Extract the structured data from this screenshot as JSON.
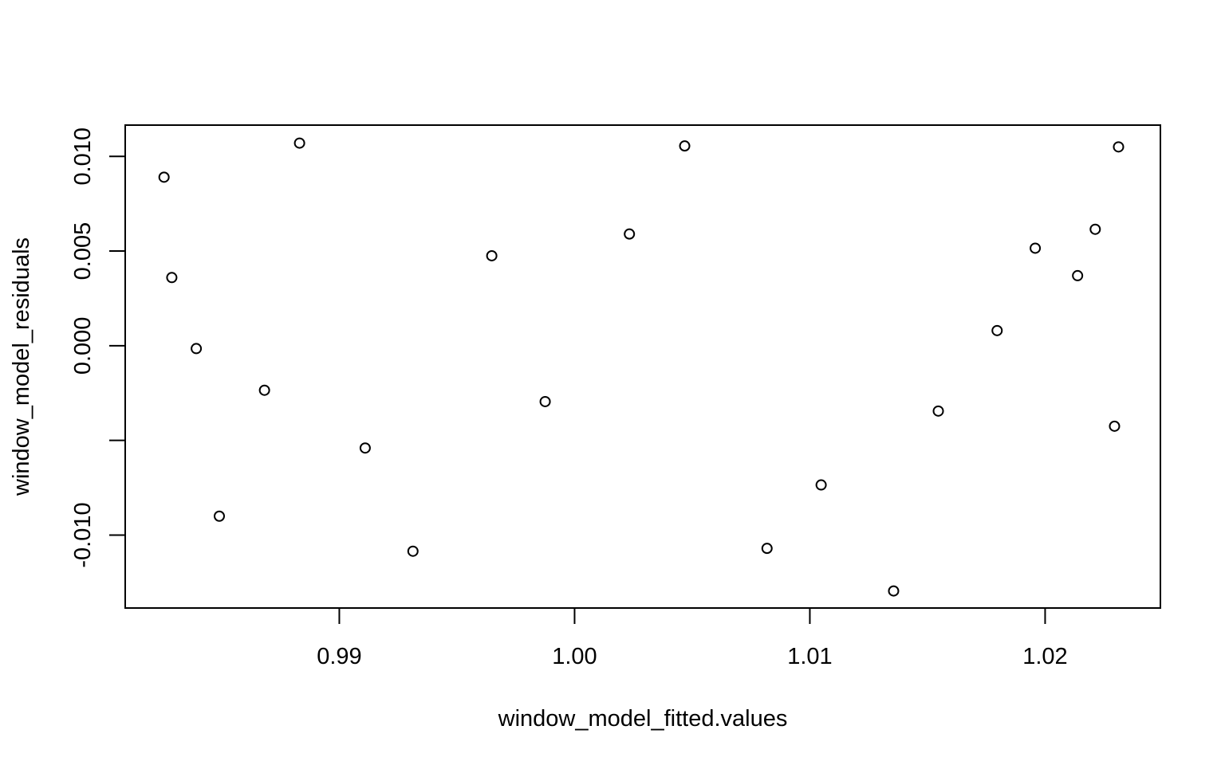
{
  "chart_data": {
    "type": "scatter",
    "title": "",
    "xlabel": "window_model_fitted.values",
    "ylabel": "window_model_residuals",
    "xlim": [
      0.9809,
      1.0249
    ],
    "ylim": [
      -0.01385,
      0.01165
    ],
    "x_ticks": [
      {
        "value": 0.99,
        "label": "0.99"
      },
      {
        "value": 1.0,
        "label": "1.00"
      },
      {
        "value": 1.01,
        "label": "1.01"
      },
      {
        "value": 1.02,
        "label": "1.02"
      }
    ],
    "y_ticks": [
      {
        "value": -0.01,
        "label": "-0.010"
      },
      {
        "value": -0.005,
        "label": ""
      },
      {
        "value": 0.0,
        "label": "0.000"
      },
      {
        "value": 0.005,
        "label": "0.005"
      },
      {
        "value": 0.01,
        "label": "0.010"
      }
    ],
    "grid": false,
    "legend": "none",
    "marker": "open-circle",
    "points": [
      {
        "x": 0.98255,
        "y": 0.0089
      },
      {
        "x": 0.98288,
        "y": 0.0036
      },
      {
        "x": 0.98392,
        "y": -0.00015
      },
      {
        "x": 0.9849,
        "y": -0.009
      },
      {
        "x": 0.98682,
        "y": -0.00235
      },
      {
        "x": 0.98831,
        "y": 0.0107
      },
      {
        "x": 0.9911,
        "y": -0.0054
      },
      {
        "x": 0.99313,
        "y": -0.01085
      },
      {
        "x": 0.99648,
        "y": 0.00475
      },
      {
        "x": 0.99875,
        "y": -0.00295
      },
      {
        "x": 1.00233,
        "y": 0.0059
      },
      {
        "x": 1.00468,
        "y": 0.01055
      },
      {
        "x": 1.00818,
        "y": -0.0107
      },
      {
        "x": 1.01048,
        "y": -0.00735
      },
      {
        "x": 1.01356,
        "y": -0.01295
      },
      {
        "x": 1.01546,
        "y": -0.00345
      },
      {
        "x": 1.01796,
        "y": 0.0008
      },
      {
        "x": 1.01958,
        "y": 0.00515
      },
      {
        "x": 1.02138,
        "y": 0.0037
      },
      {
        "x": 1.02213,
        "y": 0.00615
      },
      {
        "x": 1.02295,
        "y": -0.00425
      },
      {
        "x": 1.02312,
        "y": 0.0105
      }
    ]
  }
}
